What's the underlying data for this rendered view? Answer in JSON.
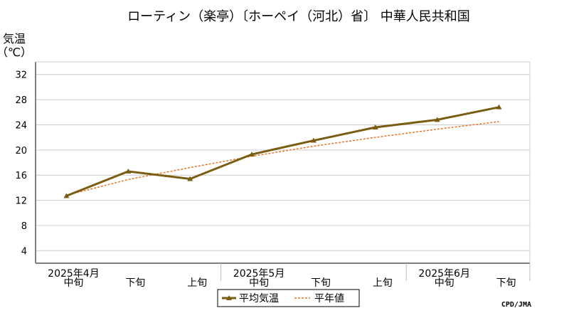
{
  "chart_data": {
    "type": "line",
    "title": "ローティン（楽亭）〔ホーペイ（河北）省〕 中華人民共和国",
    "ylabel": "気温",
    "yunit": "（℃）",
    "ylim": [
      2,
      34
    ],
    "yticks": [
      4,
      8,
      12,
      16,
      20,
      24,
      28,
      32
    ],
    "categories": [
      "中旬",
      "下旬",
      "上旬",
      "中旬",
      "下旬",
      "上旬",
      "中旬",
      "下旬"
    ],
    "month_labels": [
      {
        "label": "2025年4月",
        "index": 0
      },
      {
        "label": "2025年5月",
        "index": 3
      },
      {
        "label": "2025年6月",
        "index": 6
      }
    ],
    "series": [
      {
        "name": "平均気温",
        "values": [
          12.7,
          16.6,
          15.4,
          19.3,
          21.5,
          23.6,
          24.8,
          26.8
        ]
      },
      {
        "name": "平年値",
        "values": [
          12.8,
          15.3,
          17.2,
          19.0,
          20.6,
          22.0,
          23.3,
          24.5
        ]
      }
    ],
    "grid": true,
    "legend_position": "bottom-center",
    "colors": {
      "mean": "#7a5c12",
      "normal": "#e8742a",
      "grid": "#cccccc",
      "axis": "#7f7f7f"
    },
    "credit": "CPD/JMA"
  }
}
